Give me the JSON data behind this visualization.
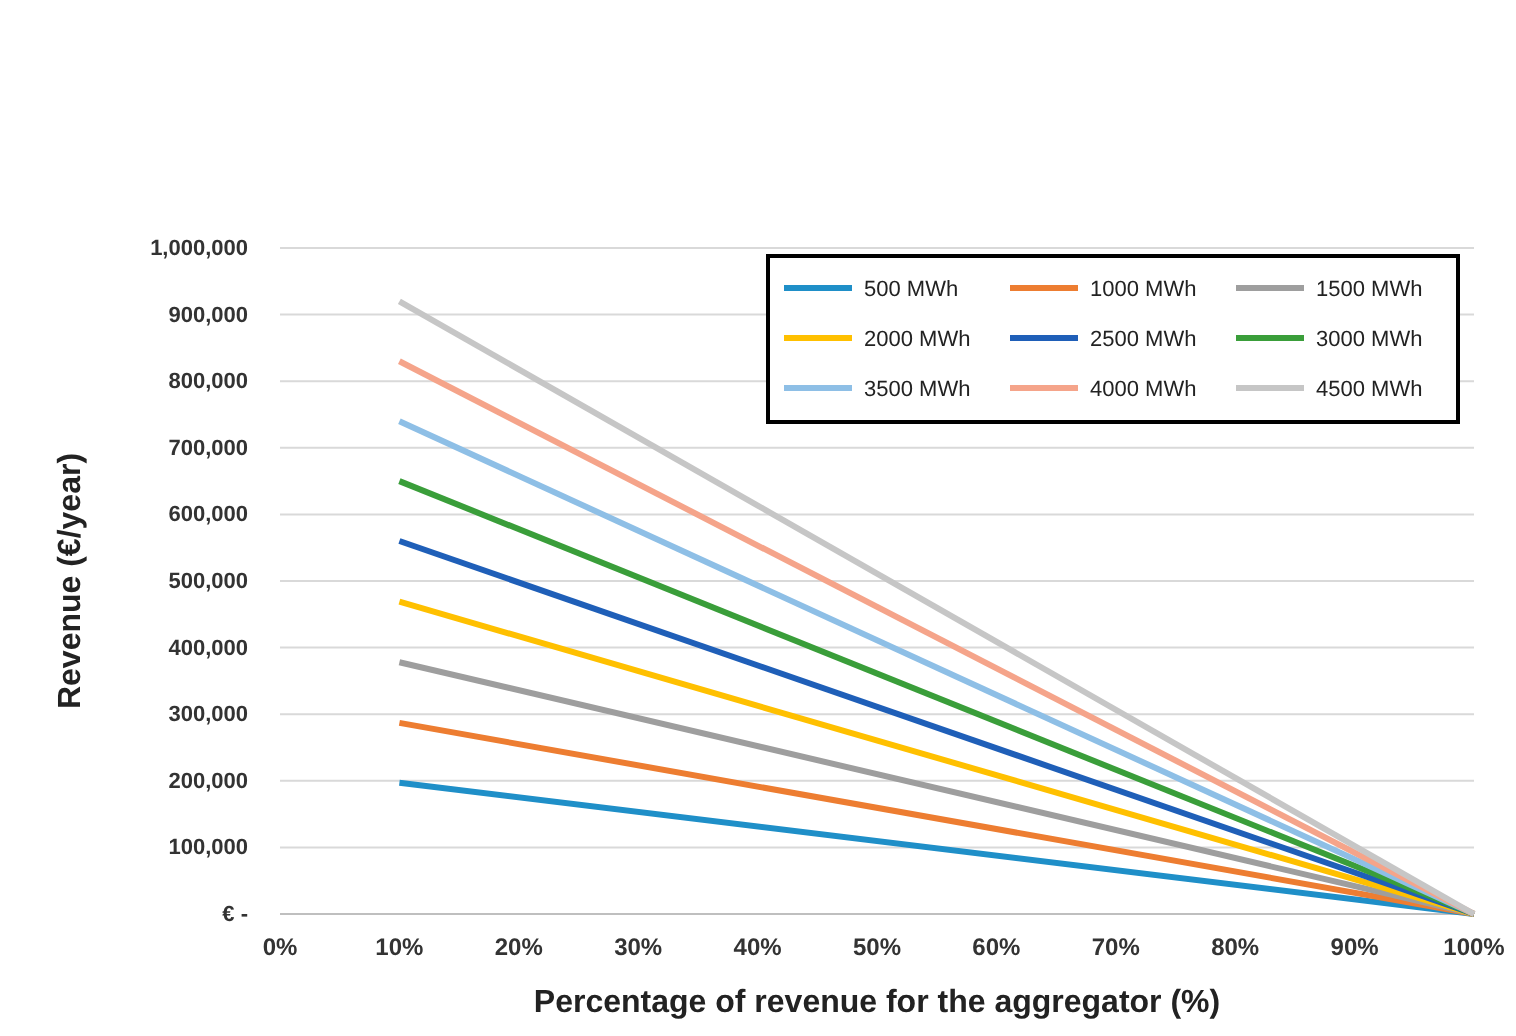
{
  "chart_data": {
    "type": "line",
    "xlabel": "Percentage of revenue for the aggregator (%)",
    "ylabel": "Revenue (€/year)",
    "x": [
      10,
      100
    ],
    "xlim": [
      0,
      100
    ],
    "xticks": [
      {
        "value": 0,
        "label": "0%"
      },
      {
        "value": 10,
        "label": "10%"
      },
      {
        "value": 20,
        "label": "20%"
      },
      {
        "value": 30,
        "label": "30%"
      },
      {
        "value": 40,
        "label": "40%"
      },
      {
        "value": 50,
        "label": "50%"
      },
      {
        "value": 60,
        "label": "60%"
      },
      {
        "value": 70,
        "label": "70%"
      },
      {
        "value": 80,
        "label": "80%"
      },
      {
        "value": 90,
        "label": "90%"
      },
      {
        "value": 100,
        "label": "100%"
      }
    ],
    "ylim": [
      0,
      1000000
    ],
    "yticks": [
      {
        "value": 0,
        "label": "€ -"
      },
      {
        "value": 100000,
        "label": "100,000"
      },
      {
        "value": 200000,
        "label": "200,000"
      },
      {
        "value": 300000,
        "label": "300,000"
      },
      {
        "value": 400000,
        "label": "400,000"
      },
      {
        "value": 500000,
        "label": "500,000"
      },
      {
        "value": 600000,
        "label": "600,000"
      },
      {
        "value": 700000,
        "label": "700,000"
      },
      {
        "value": 800000,
        "label": "800,000"
      },
      {
        "value": 900000,
        "label": "900,000"
      },
      {
        "value": 1000000,
        "label": "1,000,000"
      }
    ],
    "grid": "y",
    "legend": "top right",
    "marker": "none",
    "line_style": "solid",
    "series": [
      {
        "name": "500 MWh",
        "color": "#1f8fc8",
        "values": [
          197000,
          0
        ]
      },
      {
        "name": "1000 MWh",
        "color": "#ed7d31",
        "values": [
          287000,
          0
        ]
      },
      {
        "name": "1500 MWh",
        "color": "#9e9e9e",
        "values": [
          378000,
          0
        ]
      },
      {
        "name": "2000 MWh",
        "color": "#ffc000",
        "values": [
          469000,
          0
        ]
      },
      {
        "name": "2500 MWh",
        "color": "#1f5fb8",
        "values": [
          560000,
          0
        ]
      },
      {
        "name": "3000 MWh",
        "color": "#3a9e3a",
        "values": [
          650000,
          0
        ]
      },
      {
        "name": "3500 MWh",
        "color": "#8ebfe6",
        "values": [
          740000,
          0
        ]
      },
      {
        "name": "4000 MWh",
        "color": "#f5a48a",
        "values": [
          830000,
          0
        ]
      },
      {
        "name": "4500 MWh",
        "color": "#c6c6c6",
        "values": [
          920000,
          0
        ]
      }
    ]
  }
}
